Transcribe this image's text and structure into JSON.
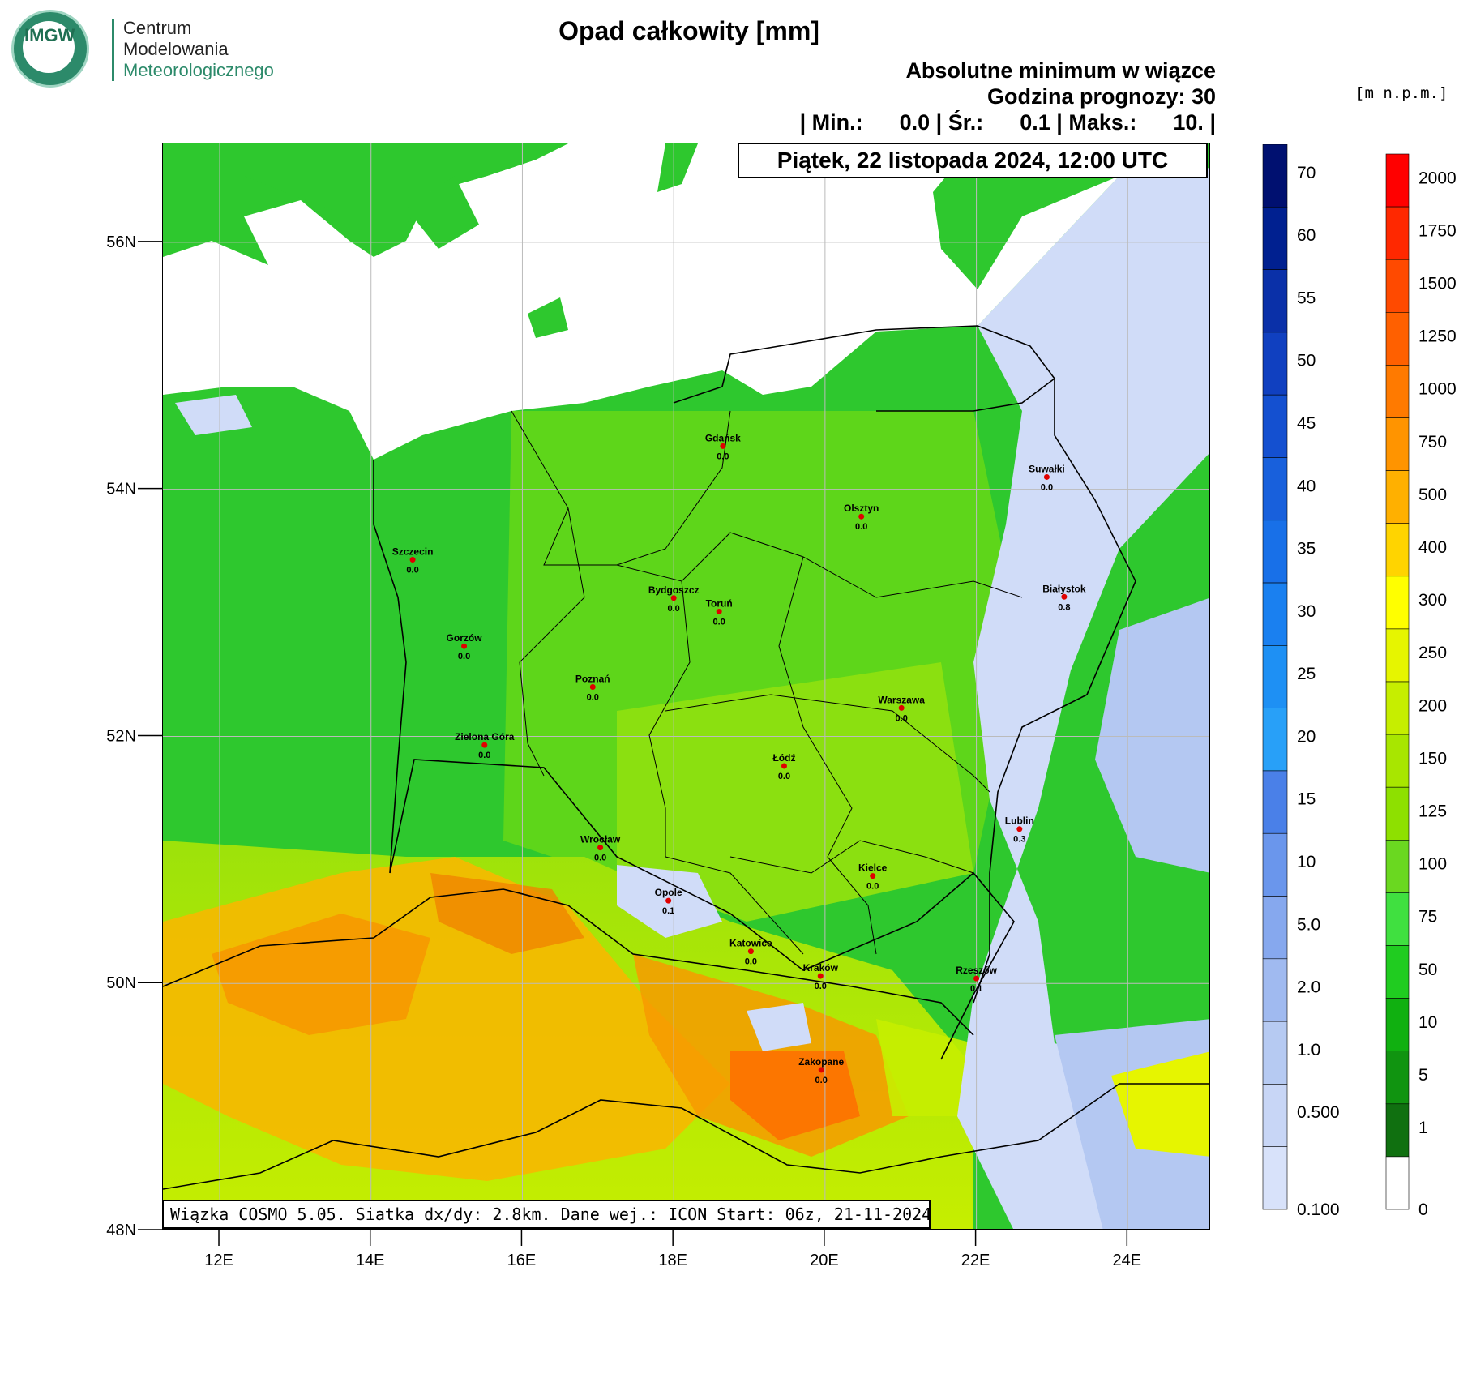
{
  "header": {
    "logo_text": "IMGW",
    "org_line1": "Centrum",
    "org_line2": "Modelowania",
    "org_line3": "Meteorologicznego",
    "title": "Opad całkowity [mm]",
    "subtitle1": "Absolutne minimum w wiązce",
    "subtitle2": "Godzina prognozy: 30",
    "stats_line": "| Min.:      0.0 | Śr.:      0.1 | Maks.:      10. |",
    "date": "Piątek, 22 listopada 2024, 12:00 UTC",
    "terrain_unit": "[m n.p.m.]"
  },
  "footer": {
    "text": "Wiązka COSMO 5.05. Siatka dx/dy: 2.8km. Dane wej.: ICON Start: 06z, 21-11-2024"
  },
  "axes": {
    "lat_labels": [
      "56N",
      "54N",
      "52N",
      "50N",
      "48N"
    ],
    "lat_values": [
      56,
      54,
      52,
      50,
      48
    ],
    "lon_labels": [
      "12E",
      "14E",
      "16E",
      "18E",
      "20E",
      "22E",
      "24E"
    ],
    "lon_values": [
      12,
      14,
      16,
      18,
      20,
      22,
      24
    ],
    "lon_range": [
      11.25,
      25.1
    ],
    "lat_range": [
      48.0,
      56.8
    ]
  },
  "cities": [
    {
      "name": "Gdańsk",
      "value": "0.0",
      "lon": 18.65,
      "lat": 54.35
    },
    {
      "name": "Suwałki",
      "value": "0.0",
      "lon": 22.93,
      "lat": 54.1
    },
    {
      "name": "Olsztyn",
      "value": "0.0",
      "lon": 20.48,
      "lat": 53.78
    },
    {
      "name": "Szczecin",
      "value": "0.0",
      "lon": 14.55,
      "lat": 53.43
    },
    {
      "name": "Bydgoszcz",
      "value": "0.0",
      "lon": 18.0,
      "lat": 53.12
    },
    {
      "name": "Toruń",
      "value": "0.0",
      "lon": 18.6,
      "lat": 53.01
    },
    {
      "name": "Białystok",
      "value": "0.8",
      "lon": 23.16,
      "lat": 53.13
    },
    {
      "name": "Gorzów",
      "value": "0.0",
      "lon": 15.23,
      "lat": 52.73
    },
    {
      "name": "Poznań",
      "value": "0.0",
      "lon": 16.93,
      "lat": 52.4
    },
    {
      "name": "Warszawa",
      "value": "0.0",
      "lon": 21.01,
      "lat": 52.23
    },
    {
      "name": "Zielona Góra",
      "value": "0.0",
      "lon": 15.5,
      "lat": 51.93
    },
    {
      "name": "Łódź",
      "value": "0.0",
      "lon": 19.46,
      "lat": 51.76
    },
    {
      "name": "Lublin",
      "value": "0.3",
      "lon": 22.57,
      "lat": 51.25
    },
    {
      "name": "Wrocław",
      "value": "0.0",
      "lon": 17.03,
      "lat": 51.1
    },
    {
      "name": "Kielce",
      "value": "0.0",
      "lon": 20.63,
      "lat": 50.87
    },
    {
      "name": "Opole",
      "value": "0.1",
      "lon": 17.93,
      "lat": 50.67
    },
    {
      "name": "Katowice",
      "value": "0.0",
      "lon": 19.02,
      "lat": 50.26
    },
    {
      "name": "Rzeszów",
      "value": "0.1",
      "lon": 22.0,
      "lat": 50.04
    },
    {
      "name": "Kraków",
      "value": "0.0",
      "lon": 19.94,
      "lat": 50.06
    },
    {
      "name": "Zakopane",
      "value": "0.0",
      "lon": 19.95,
      "lat": 49.3
    }
  ],
  "precip_scale": {
    "labels": [
      "70",
      "60",
      "55",
      "50",
      "45",
      "40",
      "35",
      "30",
      "25",
      "20",
      "15",
      "10",
      "5.0",
      "2.0",
      "1.0",
      "0.500",
      "0.100"
    ],
    "colors": [
      "#001070",
      "#002090",
      "#0a30a8",
      "#1040c0",
      "#1450d0",
      "#1860dc",
      "#1870e8",
      "#1a80f0",
      "#1e90f4",
      "#28a0f8",
      "#4a80e8",
      "#6a96ec",
      "#86a8ee",
      "#a0baf0",
      "#b6caf2",
      "#c8d6f6",
      "#d8e2fa"
    ]
  },
  "terrain_scale": {
    "labels": [
      "2000",
      "1750",
      "1500",
      "1250",
      "1000",
      "750",
      "500",
      "400",
      "300",
      "250",
      "200",
      "150",
      "125",
      "100",
      "75",
      "50",
      "10",
      "5",
      "1",
      "0"
    ],
    "colors": [
      "#ff0000",
      "#ff2800",
      "#ff4a00",
      "#ff6000",
      "#ff7a00",
      "#ff9400",
      "#ffb000",
      "#ffd400",
      "#ffff00",
      "#e6f500",
      "#c6ee00",
      "#a8e600",
      "#8ee000",
      "#6ad820",
      "#40e040",
      "#20cc20",
      "#10b010",
      "#109410",
      "#107010",
      "#ffffff"
    ]
  }
}
